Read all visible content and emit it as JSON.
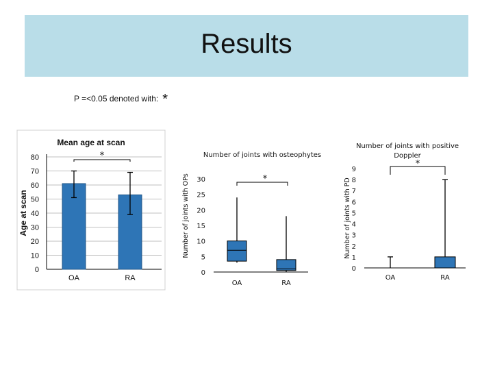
{
  "slide": {
    "title": "Results",
    "p_note": "P =<0.05 denoted with:",
    "p_note_star": "*"
  },
  "chart_data": [
    {
      "type": "bar",
      "title": "Mean age at scan",
      "ylabel": "Age at scan",
      "ylim": [
        0,
        80
      ],
      "yticks": [
        0,
        10,
        20,
        30,
        40,
        50,
        60,
        70,
        80
      ],
      "categories": [
        "OA",
        "RA"
      ],
      "values": [
        61,
        53
      ],
      "error_low": [
        51,
        39
      ],
      "error_high": [
        70,
        69
      ],
      "significance": "*",
      "grid": true
    },
    {
      "type": "box",
      "title": "Number of joints with osteophytes",
      "ylabel": "Number of joints with OPs",
      "ylim": [
        0,
        30
      ],
      "yticks": [
        0,
        5,
        10,
        15,
        20,
        25,
        30
      ],
      "categories": [
        "OA",
        "RA"
      ],
      "boxes": [
        {
          "min": 3,
          "q1": 3.5,
          "median": 7,
          "q3": 10,
          "max": 24
        },
        {
          "min": 0,
          "q1": 0.5,
          "median": 1,
          "q3": 4,
          "max": 18
        }
      ],
      "significance": "*"
    },
    {
      "type": "box",
      "title": "Number of joints with positive Doppler",
      "ylabel": "Number of joints with PD",
      "ylim": [
        0,
        9
      ],
      "yticks": [
        0,
        1,
        2,
        3,
        4,
        5,
        6,
        7,
        8,
        9
      ],
      "categories": [
        "OA",
        "RA"
      ],
      "boxes": [
        {
          "min": 0,
          "q1": 0,
          "median": 0,
          "q3": 0,
          "max": 1
        },
        {
          "min": 0,
          "q1": 0,
          "median": 0,
          "q3": 1,
          "max": 8
        }
      ],
      "significance": "*"
    }
  ]
}
